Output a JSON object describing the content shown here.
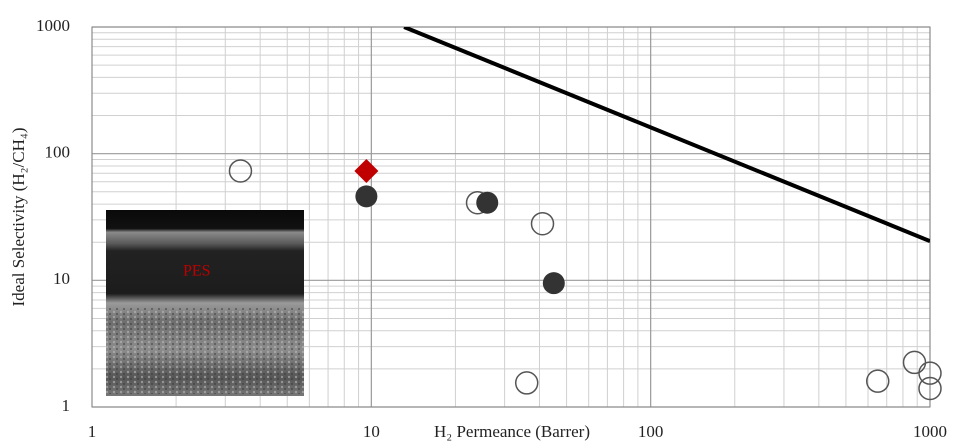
{
  "chart_data": {
    "type": "scatter",
    "x_label": "H₂ Permeance (Barrer)",
    "y_label": "Ideal Selectivity (H₂/CH₄)",
    "xlog": true,
    "ylog": true,
    "xlim": [
      1,
      1000
    ],
    "ylim": [
      1,
      1000
    ],
    "xticks": [
      1,
      10,
      100,
      1000
    ],
    "yticks": [
      1,
      10,
      100,
      1000
    ],
    "xminorticks": [
      2,
      3,
      4,
      5,
      6,
      7,
      8,
      9,
      20,
      30,
      40,
      50,
      60,
      70,
      80,
      90,
      200,
      300,
      400,
      500,
      600,
      700,
      800,
      900
    ],
    "yminorticks": [
      2,
      3,
      4,
      5,
      6,
      7,
      8,
      9,
      20,
      30,
      40,
      50,
      60,
      70,
      80,
      90,
      200,
      300,
      400,
      500,
      600,
      700,
      800,
      900
    ],
    "grid": true,
    "series": [
      {
        "marker": "open-circle",
        "color": "#555555",
        "x": [
          3.4,
          24,
          41,
          36,
          650,
          880,
          1000,
          1000
        ],
        "values": [
          73,
          41,
          28,
          1.55,
          1.6,
          2.25,
          1.85,
          1.4
        ]
      },
      {
        "marker": "filled-circle",
        "color": "#333333",
        "x": [
          9.6,
          26,
          45
        ],
        "values": [
          46,
          41,
          9.5
        ]
      },
      {
        "marker": "diamond",
        "color": "#c00000",
        "x": [
          9.6
        ],
        "values": [
          73
        ]
      }
    ],
    "line": {
      "color": "#000000",
      "x": [
        13.1,
        1000
      ],
      "values": [
        1000,
        20.4
      ]
    },
    "inset_label": "PES"
  }
}
